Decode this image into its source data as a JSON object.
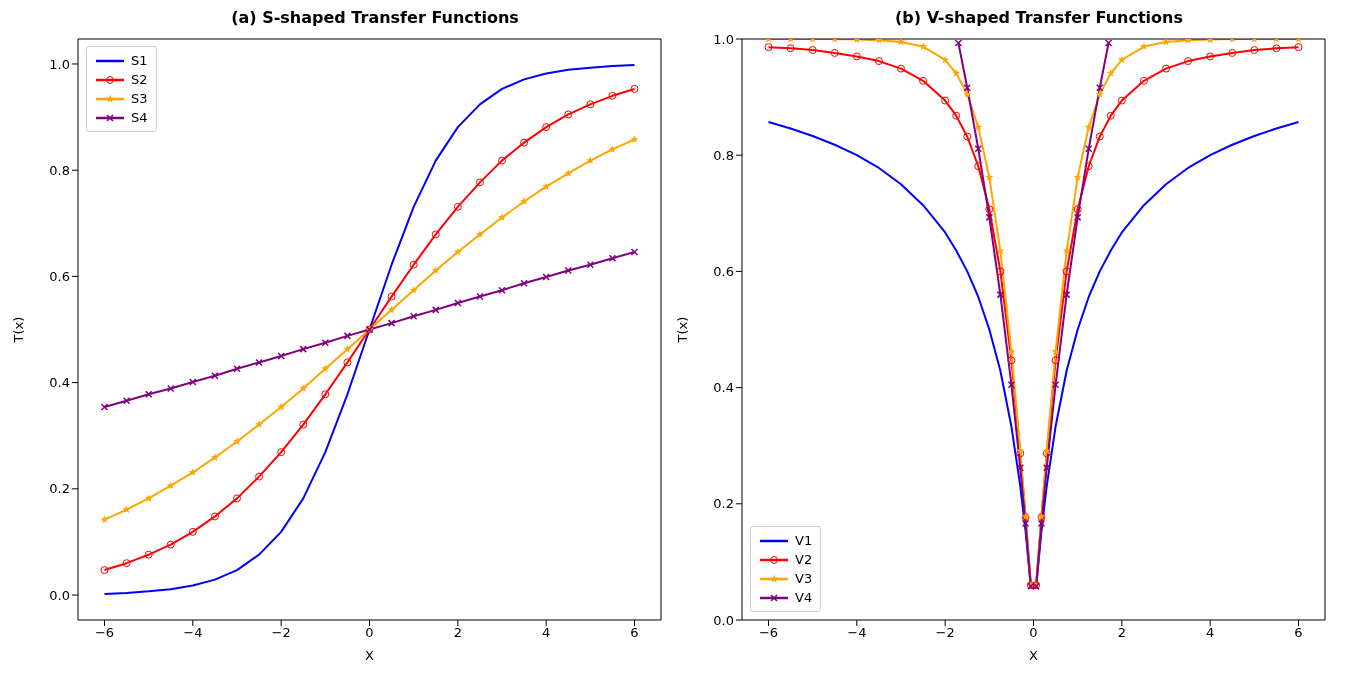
{
  "chart_data": [
    {
      "type": "line",
      "title": "(a) S-shaped Transfer Functions",
      "xlabel": "X",
      "ylabel": "T(x)",
      "legend": "top left",
      "grid": false,
      "x": [
        -6,
        -5.5,
        -5,
        -4.5,
        -4,
        -3.5,
        -3,
        -2.5,
        -2,
        -1.5,
        -1,
        -0.5,
        0,
        0.5,
        1,
        1.5,
        2,
        2.5,
        3,
        3.5,
        4,
        4.5,
        5,
        5.5,
        6
      ],
      "xlim": [
        -6.6,
        6.6
      ],
      "ylim": [
        -0.047,
        1.047
      ],
      "xticks": [
        {
          "value": -6,
          "label": "−6"
        },
        {
          "value": -4,
          "label": "−4"
        },
        {
          "value": -2,
          "label": "−2"
        },
        0,
        2,
        4,
        6
      ],
      "yticks": [
        {
          "value": 0,
          "label": "0.0"
        },
        {
          "value": 0.2,
          "label": "0.2"
        },
        {
          "value": 0.4,
          "label": "0.4"
        },
        {
          "value": 0.6,
          "label": "0.6"
        },
        {
          "value": 0.8,
          "label": "0.8"
        },
        {
          "value": 1,
          "label": "1.0"
        }
      ],
      "series": [
        {
          "name": "S1",
          "color": "#0000ff",
          "marker": "none",
          "values": [
            0.002,
            0.004,
            0.007,
            0.011,
            0.018,
            0.029,
            0.047,
            0.076,
            0.119,
            0.182,
            0.269,
            0.378,
            0.5,
            0.622,
            0.731,
            0.818,
            0.881,
            0.924,
            0.953,
            0.971,
            0.982,
            0.989,
            0.993,
            0.996,
            0.998
          ]
        },
        {
          "name": "S2",
          "color": "#ff0000",
          "marker": "circle",
          "values": [
            0.047,
            0.06,
            0.076,
            0.095,
            0.119,
            0.148,
            0.182,
            0.223,
            0.269,
            0.321,
            0.378,
            0.438,
            0.5,
            0.562,
            0.622,
            0.679,
            0.731,
            0.777,
            0.818,
            0.852,
            0.881,
            0.905,
            0.924,
            0.94,
            0.953
          ]
        },
        {
          "name": "S3",
          "color": "#ffa500",
          "marker": "star",
          "values": [
            0.142,
            0.161,
            0.182,
            0.206,
            0.231,
            0.259,
            0.289,
            0.321,
            0.354,
            0.389,
            0.426,
            0.463,
            0.5,
            0.537,
            0.574,
            0.611,
            0.646,
            0.679,
            0.711,
            0.741,
            0.769,
            0.794,
            0.818,
            0.839,
            0.858
          ]
        },
        {
          "name": "S4",
          "color": "#800080",
          "marker": "cross",
          "values": [
            0.354,
            0.366,
            0.378,
            0.389,
            0.401,
            0.413,
            0.426,
            0.438,
            0.45,
            0.463,
            0.475,
            0.488,
            0.5,
            0.512,
            0.525,
            0.537,
            0.55,
            0.562,
            0.574,
            0.587,
            0.599,
            0.611,
            0.622,
            0.634,
            0.646
          ]
        }
      ]
    },
    {
      "type": "line",
      "title": "(b) V-shaped Transfer Functions",
      "xlabel": "X",
      "ylabel": "T(x)",
      "legend": "bottom left",
      "grid": false,
      "x": [
        -6,
        -5.5,
        -5,
        -4.5,
        -4,
        -3.5,
        -3,
        -2.5,
        -2,
        -1.75,
        -1.5,
        -1.25,
        -1,
        -0.75,
        -0.5,
        -0.3,
        -0.18,
        -0.06,
        0.06,
        0.18,
        0.3,
        0.5,
        0.75,
        1,
        1.25,
        1.5,
        1.75,
        2,
        2.5,
        3,
        3.5,
        4,
        4.5,
        5,
        5.5,
        6
      ],
      "xlim": [
        -6.6,
        6.6
      ],
      "ylim": [
        0,
        1
      ],
      "xticks": [
        {
          "value": -6,
          "label": "−6"
        },
        {
          "value": -4,
          "label": "−4"
        },
        {
          "value": -2,
          "label": "−2"
        },
        0,
        2,
        4,
        6
      ],
      "yticks": [
        {
          "value": 0,
          "label": "0.0"
        },
        {
          "value": 0.2,
          "label": "0.2"
        },
        {
          "value": 0.4,
          "label": "0.4"
        },
        {
          "value": 0.6,
          "label": "0.6"
        },
        {
          "value": 0.8,
          "label": "0.8"
        },
        {
          "value": 1,
          "label": "1.0"
        }
      ],
      "series": [
        {
          "name": "V1",
          "color": "#0000ff",
          "marker": "none",
          "values": [
            0.857,
            0.846,
            0.833,
            0.818,
            0.8,
            0.778,
            0.75,
            0.714,
            0.667,
            0.636,
            0.6,
            0.556,
            0.5,
            0.429,
            0.333,
            0.231,
            0.153,
            0.057,
            0.057,
            0.153,
            0.231,
            0.333,
            0.429,
            0.5,
            0.556,
            0.6,
            0.636,
            0.667,
            0.714,
            0.75,
            0.778,
            0.8,
            0.818,
            0.833,
            0.846,
            0.857
          ]
        },
        {
          "name": "V2",
          "color": "#ff0000",
          "marker": "circle",
          "values": [
            0.986,
            0.984,
            0.981,
            0.976,
            0.97,
            0.962,
            0.949,
            0.928,
            0.894,
            0.868,
            0.832,
            0.781,
            0.707,
            0.6,
            0.447,
            0.287,
            0.177,
            0.06,
            0.06,
            0.177,
            0.287,
            0.447,
            0.6,
            0.707,
            0.781,
            0.832,
            0.868,
            0.894,
            0.928,
            0.949,
            0.962,
            0.97,
            0.976,
            0.981,
            0.984,
            0.986
          ]
        },
        {
          "name": "V3",
          "color": "#ffa500",
          "marker": "star",
          "values": [
            1,
            1,
            1,
            1,
            0.999,
            0.998,
            0.995,
            0.987,
            0.964,
            0.941,
            0.905,
            0.848,
            0.762,
            0.635,
            0.462,
            0.291,
            0.178,
            0.06,
            0.06,
            0.178,
            0.291,
            0.462,
            0.635,
            0.762,
            0.848,
            0.905,
            0.941,
            0.964,
            0.987,
            0.995,
            0.998,
            0.999,
            1,
            1,
            1,
            1
          ]
        },
        {
          "name": "V4",
          "color": "#800080",
          "marker": "cross",
          "x": [
            -1.7,
            -1.5,
            -1.25,
            -1,
            -0.75,
            -0.5,
            -0.3,
            -0.18,
            -0.06,
            0.06,
            0.18,
            0.3,
            0.5,
            0.75,
            1,
            1.25,
            1.5,
            1.7
          ],
          "values": [
            0.993,
            0.916,
            0.811,
            0.693,
            0.56,
            0.405,
            0.262,
            0.166,
            0.058,
            0.058,
            0.166,
            0.262,
            0.405,
            0.56,
            0.693,
            0.811,
            0.916,
            0.993
          ]
        }
      ]
    }
  ]
}
